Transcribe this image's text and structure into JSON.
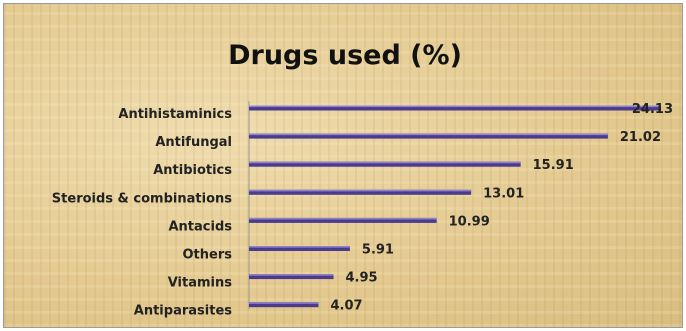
{
  "chart_data": {
    "type": "bar",
    "orientation": "horizontal",
    "title": "Drugs used (%)",
    "categories": [
      "Antihistaminics",
      "Antifungal",
      "Antibiotics",
      "Steroids & combinations",
      "Antacids",
      "Others",
      "Vitamins",
      "Antiparasites"
    ],
    "values": [
      24.13,
      21.02,
      15.91,
      13.01,
      10.99,
      5.91,
      4.95,
      4.07
    ],
    "value_labels": [
      "24.13",
      "21.02",
      "15.91",
      "13.01",
      "10.99",
      "5.91",
      "4.95",
      "4.07"
    ],
    "xlim": [
      0,
      24.13
    ],
    "grid": false,
    "legend": "none",
    "colors": {
      "bar": "#4b3b8c",
      "bar_highlight": "#8f82c9",
      "background": "#e6cf9a"
    }
  }
}
